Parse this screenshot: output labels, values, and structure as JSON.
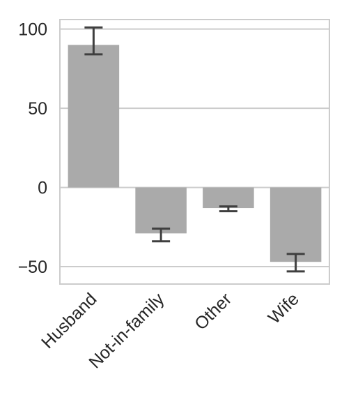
{
  "chart_data": {
    "type": "bar",
    "categories": [
      "Husband",
      "Not-in-family",
      "Other",
      "Wife"
    ],
    "values": [
      90,
      -29,
      -13,
      -47
    ],
    "error_low": [
      84,
      -34,
      -15,
      -53
    ],
    "error_high": [
      101,
      -26,
      -12,
      -42
    ],
    "title": "",
    "xlabel": "",
    "ylabel": "",
    "ylim": [
      -61,
      106
    ],
    "yticks": [
      100,
      50,
      0,
      -50
    ],
    "ytick_labels": [
      "100",
      "50",
      "0",
      "−50"
    ],
    "grid": true,
    "bar_color": "#aaaaaa",
    "error_color": "#3f3f3f",
    "grid_color": "#cccccc"
  }
}
